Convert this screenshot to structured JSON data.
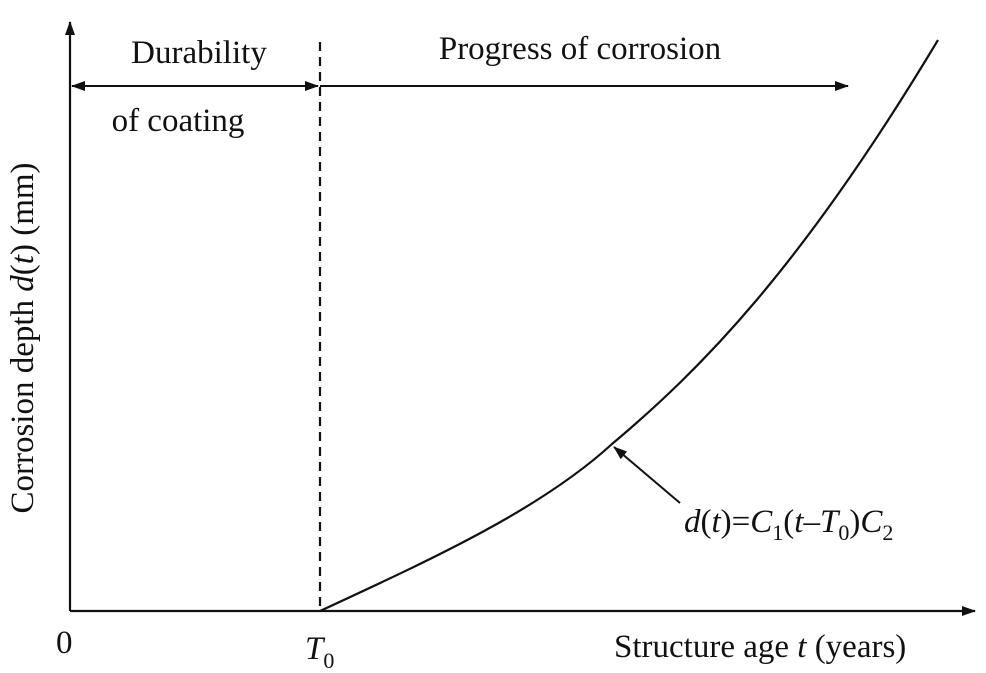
{
  "diagram": {
    "y_axis_label": {
      "prefix": "Corrosion depth ",
      "fn": "d",
      "open": "(",
      "var": "t",
      "suffix": ") (mm)"
    },
    "x_axis_label": {
      "prefix": "Structure age ",
      "var": "t",
      "suffix": " (years)"
    },
    "origin_label": "0",
    "t0_label": {
      "main": "T",
      "sub": "0"
    },
    "region_coating": {
      "line1": "Durability",
      "line2": "of coating"
    },
    "region_corrosion": "Progress of corrosion",
    "formula": {
      "d": "d",
      "p1": "(",
      "t1": "t",
      "p2": ")=",
      "C1": "C",
      "C1_sub": "1",
      "p3": "(",
      "t2": "t",
      "minus": "–",
      "T0": "T",
      "T0_sub": "0",
      "p4": ")",
      "C2": "C",
      "C2_sub": "2"
    },
    "colors": {
      "ink": "#111111",
      "background": "#ffffff"
    }
  }
}
